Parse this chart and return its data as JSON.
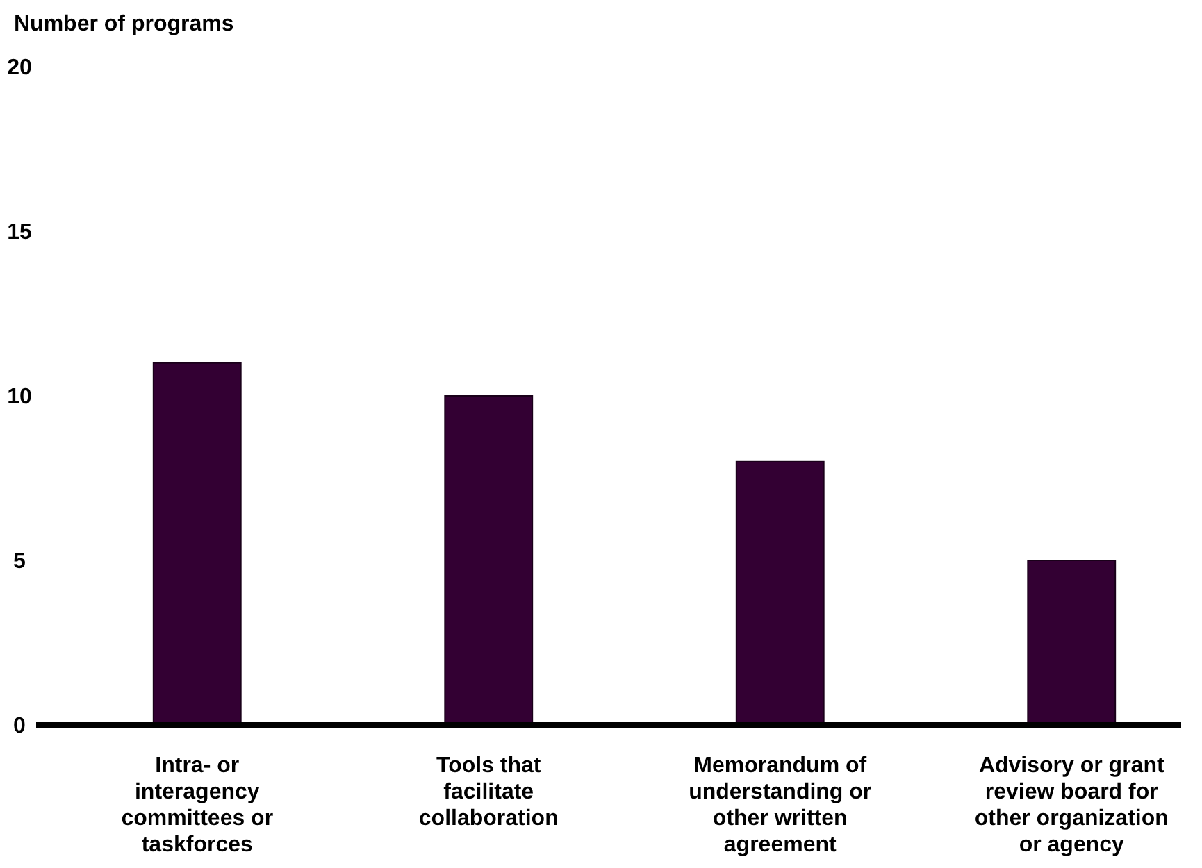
{
  "chart_data": {
    "type": "bar",
    "ylabel": "Number of programs",
    "categories": [
      "Intra- or interagency committees or taskforces",
      "Tools that facilitate collaboration",
      "Memorandum of understanding or other written agreement",
      "Advisory or grant review board for other organization or agency"
    ],
    "values": [
      11,
      10,
      8,
      5
    ],
    "color": "#330033",
    "ylim": [
      0,
      20
    ],
    "yticks": [
      0,
      5,
      10,
      15,
      20
    ],
    "grid": false
  }
}
